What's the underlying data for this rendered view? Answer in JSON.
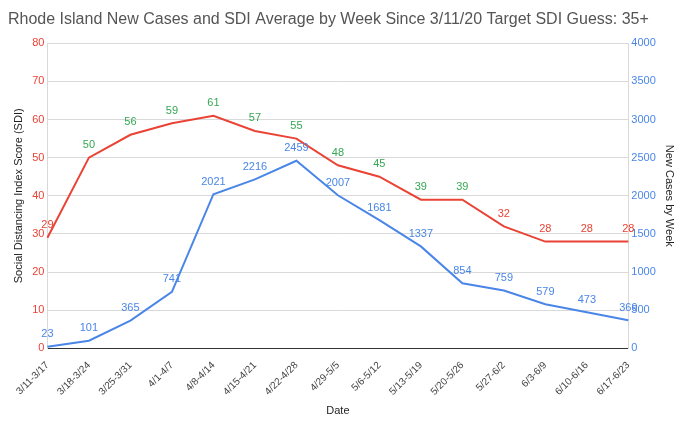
{
  "chart_data": {
    "type": "line",
    "title": "Rhode Island New Cases and SDI Average by Week Since 3/11/20 Target SDI Guess: 35+",
    "x_label": "Date",
    "y_label": "Social Distancing Index Score (SDI)",
    "y2_label": "New Cases by Week",
    "categories": [
      "3/11-3/17",
      "3/18-3/24",
      "3/25-3/31",
      "4/1-4/7",
      "4/8-4/14",
      "4/15-4/21",
      "4/22-4/28",
      "4/29-5/5",
      "5/6-5/12",
      "5/13-5/19",
      "5/20-5/26",
      "5/27-6/2",
      "6/3-6/9",
      "6/10-6/16",
      "6/17-6/23"
    ],
    "series": [
      {
        "color": "#ea4335",
        "values": [
          29,
          50,
          56,
          59,
          61,
          57,
          55,
          48,
          45,
          39,
          39,
          32,
          28,
          28,
          28
        ],
        "colors": [
          "#ea4335",
          "#34a853",
          "#34a853",
          "#34a853",
          "#34a853",
          "#34a853",
          "#34a853",
          "#34a853",
          "#34a853",
          "#34a853",
          "#34a853",
          "#ea4335",
          "#ea4335",
          "#ea4335",
          "#ea4335"
        ]
      },
      {
        "color": "#4a86e8",
        "axis": "y2",
        "values": [
          23,
          101,
          365,
          741,
          2021,
          2216,
          2459,
          2007,
          1681,
          1337,
          854,
          759,
          579,
          473,
          369
        ]
      }
    ],
    "ylim": [
      0,
      80
    ],
    "yticks": [
      0,
      10,
      20,
      30,
      40,
      50,
      60,
      70,
      80
    ],
    "y2lim": [
      0,
      4000
    ],
    "y2ticks": [
      0,
      500,
      1000,
      1500,
      2000,
      2500,
      3000,
      3500,
      4000
    ],
    "grid": true,
    "data_labels": true
  }
}
